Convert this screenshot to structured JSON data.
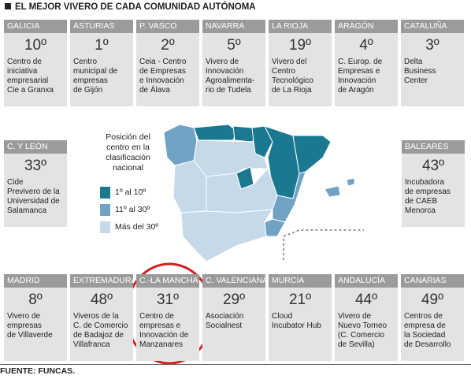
{
  "header": {
    "title": "EL MEJOR VIVERO DE CADA COMUNIDAD AUTÓNOMA"
  },
  "cards": {
    "top": [
      {
        "region": "GALICIA",
        "rank": "10º",
        "name": [
          "Centro de",
          "iniciativa",
          "empresarial",
          "Cie a Granxa"
        ]
      },
      {
        "region": "ASTURIAS",
        "rank": "1º",
        "name": [
          "Centro",
          "municipal de",
          "empresas",
          "de Gijón"
        ]
      },
      {
        "region": "P. VASCO",
        "rank": "2º",
        "name": [
          "Ceia - Centro",
          "de Empresas",
          "e Innovación",
          "de Álava"
        ]
      },
      {
        "region": "NAVARRA",
        "rank": "5º",
        "name": [
          "Vivero de",
          "Innovación",
          "Agroalimenta-",
          "rio de Tudela"
        ]
      },
      {
        "region": "LA RIOJA",
        "rank": "19º",
        "name": [
          "Vivero del",
          "Centro",
          "Tecnológico",
          "de La Rioja"
        ]
      },
      {
        "region": "ARAGÓN",
        "rank": "4º",
        "name": [
          "C. Europ. de",
          "Empresas e",
          "Innovación",
          "de Aragón"
        ]
      },
      {
        "region": "CATALUÑA",
        "rank": "3º",
        "name": [
          "Delta",
          "Business",
          "Center"
        ]
      }
    ],
    "left": [
      {
        "region": "C. Y LEÓN",
        "rank": "33º",
        "name": [
          "Cide",
          "Previvero de la",
          "Universidad de",
          "Salamanca"
        ]
      }
    ],
    "right": [
      {
        "region": "BALEARES",
        "rank": "43º",
        "name": [
          "Incubadora",
          "de empresas",
          "de CAEB",
          "Menorca"
        ]
      }
    ],
    "bottom": [
      {
        "region": "MADRID",
        "rank": "8º",
        "name": [
          "Vivero de",
          "empresas",
          "de Villaverde"
        ]
      },
      {
        "region": "EXTREMADURA",
        "rank": "48º",
        "name": [
          "Viveros de la",
          "C. de Comercio",
          "de Badajoz de",
          "Villafranca"
        ]
      },
      {
        "region": "C.-LA MANCHA",
        "rank": "31º",
        "name": [
          "Centro de",
          "empresas e",
          "Innovación de",
          "Manzanares"
        ]
      },
      {
        "region": "C. VALENCIANA",
        "rank": "29º",
        "name": [
          "Asociación",
          "Socialnest"
        ]
      },
      {
        "region": "MURCIA",
        "rank": "21º",
        "name": [
          "Cloud",
          "Incubator Hub"
        ]
      },
      {
        "region": "ANDALUCÍA",
        "rank": "44º",
        "name": [
          "Vivero de",
          "Nuevo Torneo",
          "(C. Comercio",
          "de Sevilla)"
        ]
      },
      {
        "region": "CANARIAS",
        "rank": "49º",
        "name": [
          "Centros de",
          "empresa de",
          "la Sociedad",
          "de Desarrollo"
        ]
      }
    ]
  },
  "legend": {
    "title": [
      "Posición del",
      "centro en la",
      "clasificación",
      "nacional"
    ],
    "items": [
      {
        "label": "1º al 10º",
        "color": "#1a7891"
      },
      {
        "label": "11º al 30º",
        "color": "#6fa2c3"
      },
      {
        "label": "Más del 30º",
        "color": "#c5d9e8"
      }
    ]
  },
  "footer": {
    "source": "FUENTE: FUNCAS."
  }
}
